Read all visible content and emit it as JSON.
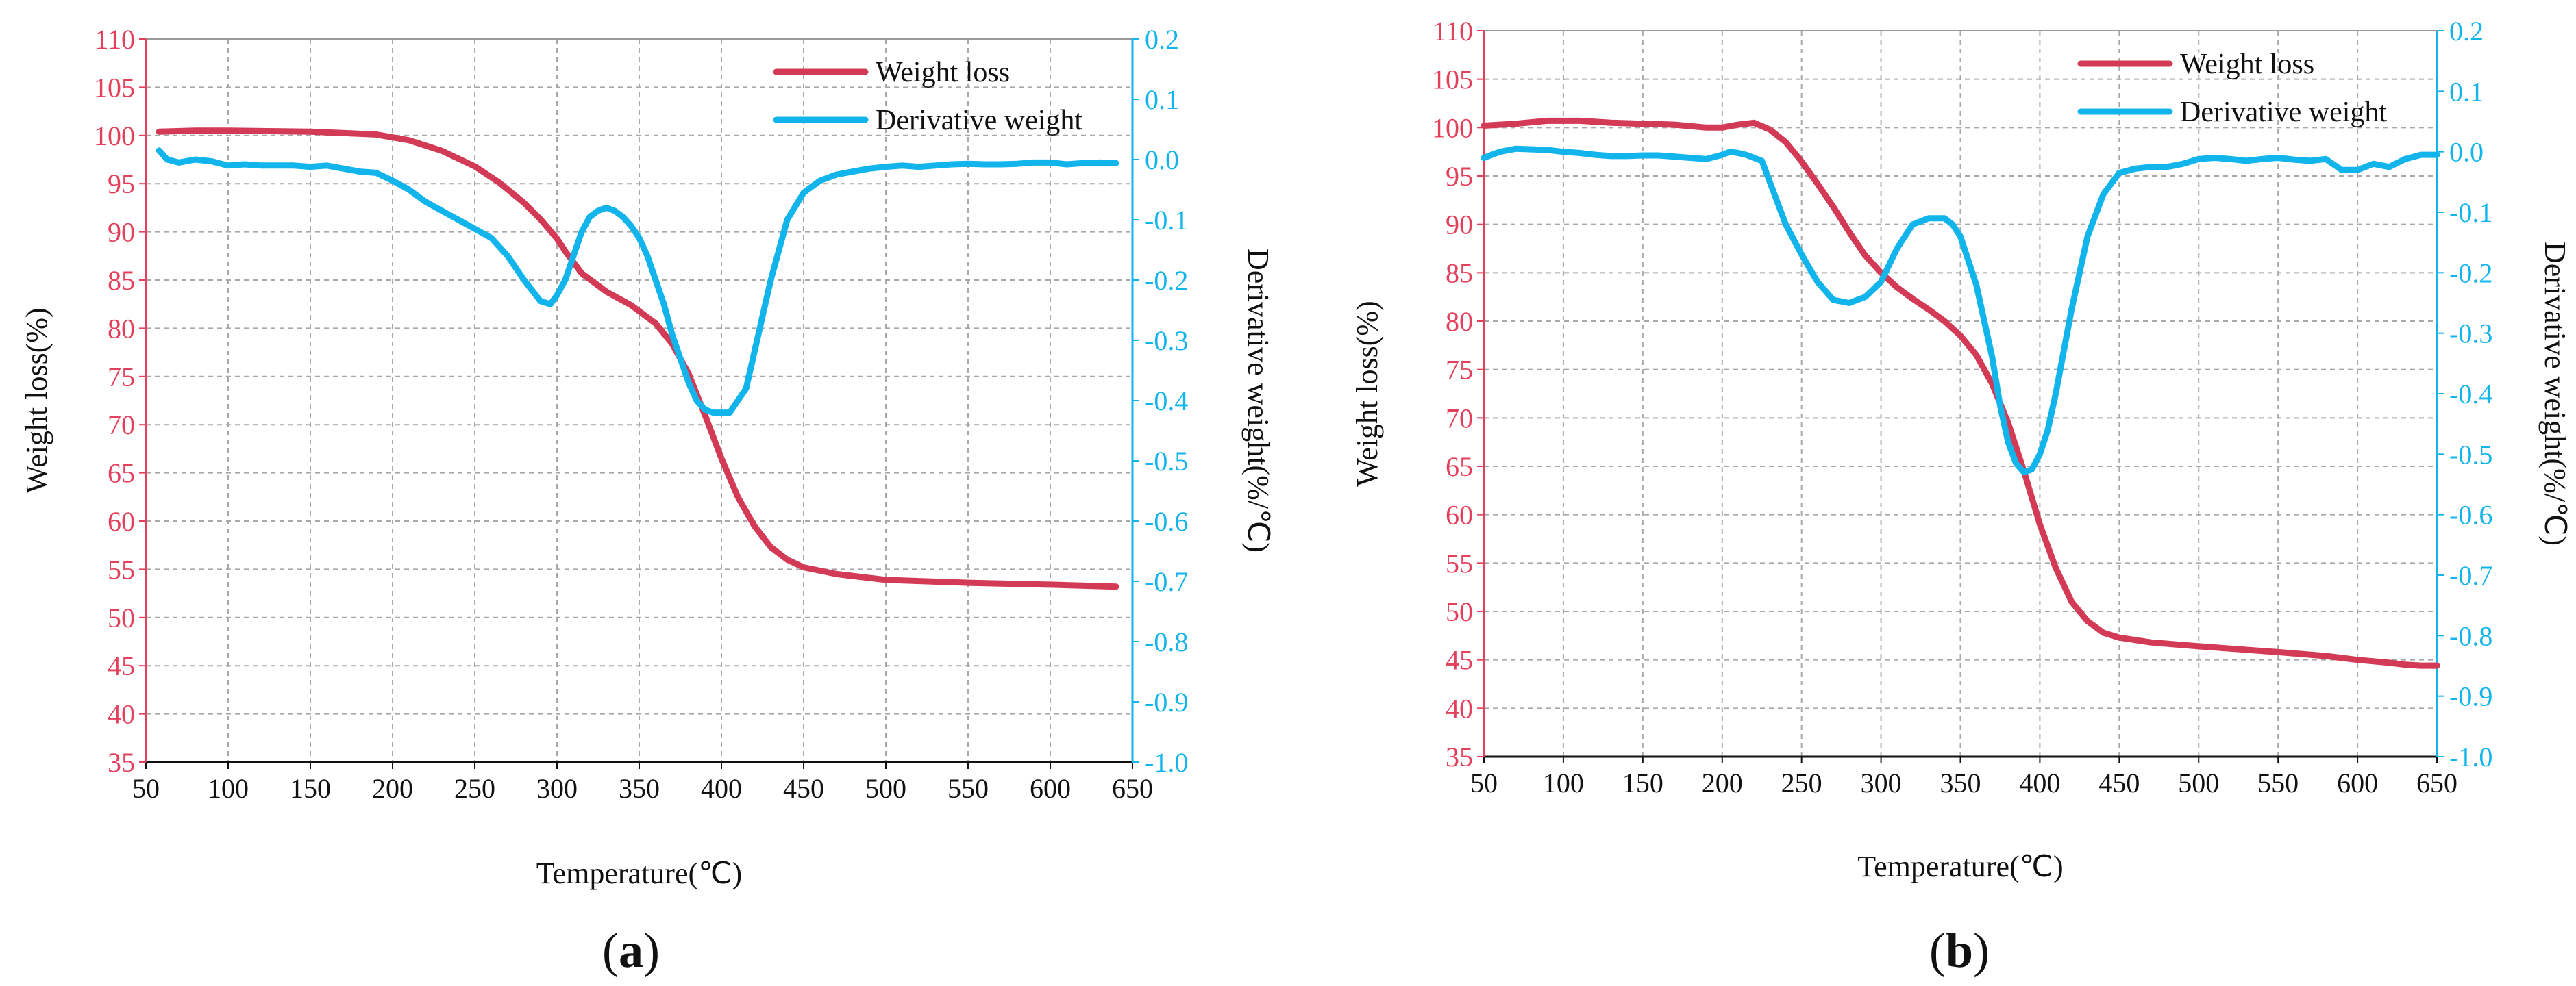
{
  "colors": {
    "weight_loss": "#d23a55",
    "derivative": "#12b4ec",
    "left_axis": "#e3405c",
    "right_axis": "#12b4ec"
  },
  "chart_data": [
    {
      "type": "line",
      "panel_label_parts": [
        "(",
        "a",
        ")"
      ],
      "xlabel": "Temperature(℃)",
      "ylabel": "Weight loss(%)",
      "y2label": "Derivative weight(%/℃)",
      "xlim": [
        50,
        650
      ],
      "ylim": [
        35,
        110
      ],
      "y2lim": [
        -1.0,
        0.2
      ],
      "x_ticks": [
        "50",
        "100",
        "150",
        "200",
        "250",
        "300",
        "350",
        "400",
        "450",
        "500",
        "550",
        "600",
        "650"
      ],
      "y_ticks": [
        "35",
        "40",
        "45",
        "50",
        "55",
        "60",
        "65",
        "70",
        "75",
        "80",
        "85",
        "90",
        "95",
        "100",
        "105",
        "110"
      ],
      "y2_ticks": [
        "-1.0",
        "-0.9",
        "-0.8",
        "-0.7",
        "-0.6",
        "-0.5",
        "-0.4",
        "-0.3",
        "-0.2",
        "-0.1",
        "0.0",
        "0.1",
        "0.2"
      ],
      "grid": true,
      "legend": "top-right",
      "series": [
        {
          "name": "Weight loss",
          "axis": "left",
          "x": [
            58,
            80,
            100,
            150,
            190,
            210,
            230,
            250,
            265,
            280,
            290,
            300,
            305,
            315,
            330,
            345,
            360,
            370,
            380,
            390,
            400,
            410,
            420,
            430,
            440,
            450,
            470,
            500,
            550,
            600,
            640
          ],
          "y": [
            100.4,
            100.5,
            100.5,
            100.4,
            100.1,
            99.5,
            98.4,
            96.8,
            95.1,
            93.0,
            91.3,
            89.3,
            88.0,
            85.7,
            83.8,
            82.4,
            80.5,
            78.4,
            75.3,
            71.0,
            66.5,
            62.5,
            59.5,
            57.3,
            56.0,
            55.2,
            54.5,
            53.9,
            53.6,
            53.4,
            53.2
          ]
        },
        {
          "name": "Derivative weight",
          "axis": "right",
          "x": [
            58,
            63,
            70,
            80,
            90,
            100,
            110,
            120,
            130,
            140,
            150,
            160,
            170,
            180,
            190,
            200,
            210,
            220,
            230,
            240,
            250,
            260,
            270,
            280,
            290,
            296,
            300,
            305,
            310,
            315,
            320,
            325,
            330,
            335,
            340,
            345,
            350,
            355,
            360,
            365,
            370,
            375,
            380,
            385,
            390,
            395,
            400,
            405,
            410,
            415,
            420,
            425,
            430,
            435,
            440,
            450,
            460,
            470,
            480,
            490,
            500,
            510,
            520,
            530,
            540,
            550,
            560,
            570,
            580,
            590,
            600,
            610,
            620,
            630,
            640
          ],
          "y": [
            0.015,
            0.0,
            -0.005,
            0.0,
            -0.003,
            -0.01,
            -0.008,
            -0.01,
            -0.01,
            -0.01,
            -0.012,
            -0.01,
            -0.015,
            -0.02,
            -0.022,
            -0.035,
            -0.05,
            -0.07,
            -0.085,
            -0.1,
            -0.115,
            -0.13,
            -0.16,
            -0.2,
            -0.235,
            -0.24,
            -0.225,
            -0.2,
            -0.16,
            -0.12,
            -0.095,
            -0.085,
            -0.08,
            -0.085,
            -0.095,
            -0.11,
            -0.13,
            -0.16,
            -0.2,
            -0.24,
            -0.29,
            -0.33,
            -0.37,
            -0.4,
            -0.415,
            -0.42,
            -0.42,
            -0.42,
            -0.4,
            -0.38,
            -0.32,
            -0.26,
            -0.2,
            -0.15,
            -0.1,
            -0.055,
            -0.035,
            -0.025,
            -0.02,
            -0.015,
            -0.012,
            -0.01,
            -0.012,
            -0.01,
            -0.008,
            -0.007,
            -0.008,
            -0.008,
            -0.007,
            -0.005,
            -0.005,
            -0.008,
            -0.006,
            -0.005,
            -0.006
          ]
        }
      ]
    },
    {
      "type": "line",
      "panel_label_parts": [
        "(",
        "b",
        ")"
      ],
      "xlabel": "Temperature(℃)",
      "ylabel": "Weight loss(%)",
      "y2label": "Derivative weight(%/℃)",
      "xlim": [
        50,
        650
      ],
      "ylim": [
        35,
        110
      ],
      "y2lim": [
        -1.0,
        0.2
      ],
      "x_ticks": [
        "50",
        "100",
        "150",
        "200",
        "250",
        "300",
        "350",
        "400",
        "450",
        "500",
        "550",
        "600",
        "650"
      ],
      "y_ticks": [
        "35",
        "40",
        "45",
        "50",
        "55",
        "60",
        "65",
        "70",
        "75",
        "80",
        "85",
        "90",
        "95",
        "100",
        "105",
        "110"
      ],
      "y2_ticks": [
        "-1.0",
        "-0.9",
        "-0.8",
        "-0.7",
        "-0.6",
        "-0.5",
        "-0.4",
        "-0.3",
        "-0.2",
        "-0.1",
        "0.0",
        "0.1",
        "0.2"
      ],
      "grid": true,
      "legend": "top-right",
      "series": [
        {
          "name": "Weight loss",
          "axis": "left",
          "x": [
            50,
            70,
            90,
            110,
            130,
            150,
            170,
            190,
            200,
            210,
            220,
            230,
            240,
            250,
            260,
            270,
            280,
            290,
            300,
            310,
            320,
            330,
            340,
            350,
            360,
            370,
            380,
            390,
            400,
            410,
            420,
            430,
            440,
            450,
            470,
            500,
            550,
            580,
            600,
            620,
            630,
            640,
            650
          ],
          "y": [
            100.2,
            100.4,
            100.7,
            100.7,
            100.5,
            100.4,
            100.3,
            100.0,
            100.0,
            100.3,
            100.5,
            99.8,
            98.5,
            96.5,
            94.2,
            91.8,
            89.2,
            86.8,
            85.0,
            83.5,
            82.3,
            81.2,
            80.0,
            78.5,
            76.5,
            73.5,
            69.5,
            64.5,
            59.0,
            54.5,
            51.0,
            49.0,
            47.8,
            47.3,
            46.8,
            46.4,
            45.8,
            45.4,
            45.0,
            44.7,
            44.5,
            44.4,
            44.4
          ]
        },
        {
          "name": "Derivative weight",
          "axis": "right",
          "x": [
            50,
            60,
            70,
            80,
            90,
            100,
            110,
            120,
            130,
            140,
            150,
            160,
            170,
            180,
            190,
            200,
            205,
            210,
            215,
            220,
            225,
            230,
            240,
            250,
            260,
            270,
            280,
            290,
            300,
            310,
            320,
            330,
            340,
            345,
            350,
            355,
            360,
            365,
            370,
            375,
            380,
            385,
            390,
            395,
            400,
            405,
            410,
            415,
            420,
            425,
            430,
            440,
            450,
            460,
            470,
            480,
            490,
            500,
            510,
            520,
            530,
            540,
            550,
            560,
            570,
            580,
            590,
            600,
            610,
            620,
            630,
            640,
            650
          ],
          "y": [
            -0.01,
            0.0,
            0.005,
            0.004,
            0.003,
            0.0,
            -0.002,
            -0.005,
            -0.007,
            -0.007,
            -0.006,
            -0.006,
            -0.008,
            -0.01,
            -0.012,
            -0.005,
            0.0,
            -0.002,
            -0.005,
            -0.01,
            -0.015,
            -0.05,
            -0.12,
            -0.17,
            -0.215,
            -0.245,
            -0.25,
            -0.24,
            -0.215,
            -0.16,
            -0.12,
            -0.11,
            -0.11,
            -0.12,
            -0.14,
            -0.18,
            -0.22,
            -0.28,
            -0.34,
            -0.42,
            -0.48,
            -0.515,
            -0.53,
            -0.525,
            -0.5,
            -0.46,
            -0.4,
            -0.33,
            -0.26,
            -0.2,
            -0.14,
            -0.07,
            -0.035,
            -0.028,
            -0.025,
            -0.025,
            -0.02,
            -0.012,
            -0.01,
            -0.012,
            -0.015,
            -0.012,
            -0.01,
            -0.013,
            -0.015,
            -0.012,
            -0.03,
            -0.03,
            -0.02,
            -0.025,
            -0.012,
            -0.005,
            -0.005
          ]
        }
      ]
    }
  ]
}
